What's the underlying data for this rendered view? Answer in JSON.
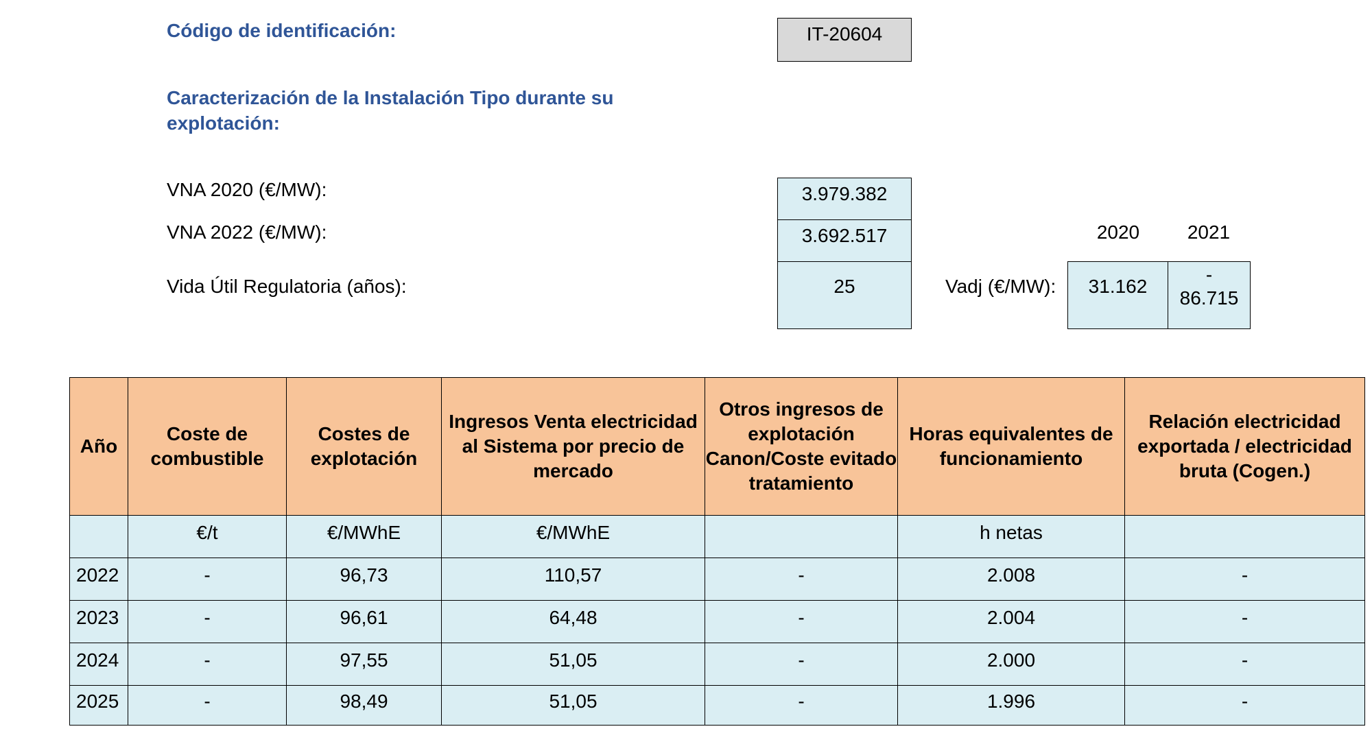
{
  "identification": {
    "label": "Código de identificación:",
    "code": "IT-20604"
  },
  "section_title": "Caracterización de la Instalación Tipo durante su explotación:",
  "vna_2020": {
    "label": "VNA 2020 (€/MW):",
    "value": "3.979.382"
  },
  "vna_2022": {
    "label": "VNA 2022 (€/MW):",
    "value": "3.692.517"
  },
  "vida_util": {
    "label": "Vida Útil Regulatoria (años):",
    "value": "25"
  },
  "vadj": {
    "label": "Vadj (€/MW):",
    "years": [
      "2020",
      "2021"
    ],
    "values": [
      "31.162",
      "-\n86.715"
    ]
  },
  "table": {
    "headers": [
      "Año",
      "Coste de combustible",
      "Costes de explotación",
      "Ingresos Venta electricidad al Sistema por precio de mercado",
      "Otros ingresos de explotación Canon/Coste evitado tratamiento",
      "Horas equivalentes de funcionamiento",
      "Relación electricidad exportada / electricidad bruta (Cogen.)"
    ],
    "units": [
      "",
      "€/t",
      "€/MWhE",
      "€/MWhE",
      "",
      "h netas",
      ""
    ],
    "rows": [
      [
        "2022",
        "-",
        "96,73",
        "110,57",
        "-",
        "2.008",
        "-"
      ],
      [
        "2023",
        "-",
        "96,61",
        "64,48",
        "-",
        "2.004",
        "-"
      ],
      [
        "2024",
        "-",
        "97,55",
        "51,05",
        "-",
        "2.000",
        "-"
      ],
      [
        "2025",
        "-",
        "98,49",
        "51,05",
        "-",
        "1.996",
        "-"
      ]
    ]
  }
}
